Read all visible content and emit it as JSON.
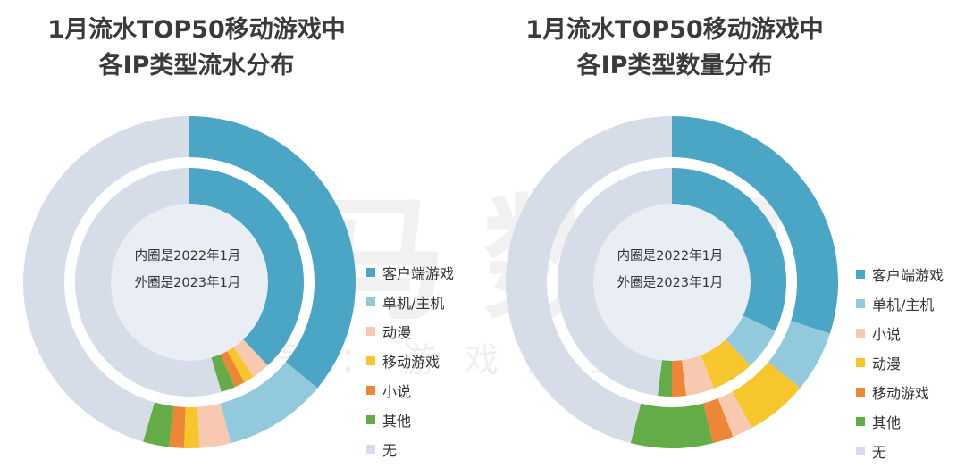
{
  "colors": {
    "客户端游戏": "#4aa6c4",
    "单机/主机": "#92c9dd",
    "动漫": "#f6c9b0",
    "移动游戏": "#ee8637",
    "小说": "#f7c62d",
    "其他": "#64ac47",
    "无": "#d6dde8"
  },
  "left": {
    "title_line1": "1月流水TOP50移动游戏中",
    "title_line2": "各IP类型流水分布",
    "center_line1": "内圈是2022年1月",
    "center_line2": "外圈是2023年1月",
    "legend": [
      "客户端游戏",
      "单机/主机",
      "动漫",
      "移动游戏",
      "小说",
      "其他",
      "无"
    ],
    "legend_colors": [
      "#4aa6c4",
      "#92c9dd",
      "#f6c9b0",
      "#f7c62d",
      "#ee8637",
      "#64ac47",
      "#d6dde8"
    ]
  },
  "right": {
    "title_line1": "1月流水TOP50移动游戏中",
    "title_line2": "各IP类型数量分布",
    "center_line1": "内圈是2022年1月",
    "center_line2": "外圈是2023年1月",
    "legend": [
      "客户端游戏",
      "单机/主机",
      "小说",
      "动漫",
      "移动游戏",
      "其他",
      "无"
    ],
    "legend_colors": [
      "#4aa6c4",
      "#92c9dd",
      "#f6c9b0",
      "#f7c62d",
      "#ee8637",
      "#64ac47",
      "#d6dde8"
    ]
  },
  "watermark": {
    "main": "伽马数据",
    "sub": "微信号：游戏产业报告"
  },
  "chart_data": [
    {
      "type": "pie",
      "title": "1月流水TOP50移动游戏中各IP类型流水分布",
      "categories": [
        "客户端游戏",
        "单机/主机",
        "动漫",
        "小说",
        "移动游戏",
        "其他",
        "无"
      ],
      "series": [
        {
          "name": "外圈是2023年1月",
          "values": [
            36,
            10,
            3,
            1.5,
            1.5,
            2.5,
            45.5
          ]
        },
        {
          "name": "内圈是2022年1月",
          "values": [
            38,
            0,
            2.5,
            1.5,
            1.5,
            2,
            54.5
          ]
        }
      ]
    },
    {
      "type": "pie",
      "title": "1月流水TOP50移动游戏中各IP类型数量分布",
      "categories": [
        "客户端游戏",
        "单机/主机",
        "小说",
        "动漫",
        "移动游戏",
        "其他",
        "无"
      ],
      "series": [
        {
          "name": "外圈是2023年1月",
          "values": [
            30,
            6,
            6,
            2,
            2,
            8,
            46
          ]
        },
        {
          "name": "内圈是2022年1月",
          "values": [
            32,
            6,
            6,
            4,
            2,
            2,
            48
          ]
        }
      ]
    }
  ]
}
